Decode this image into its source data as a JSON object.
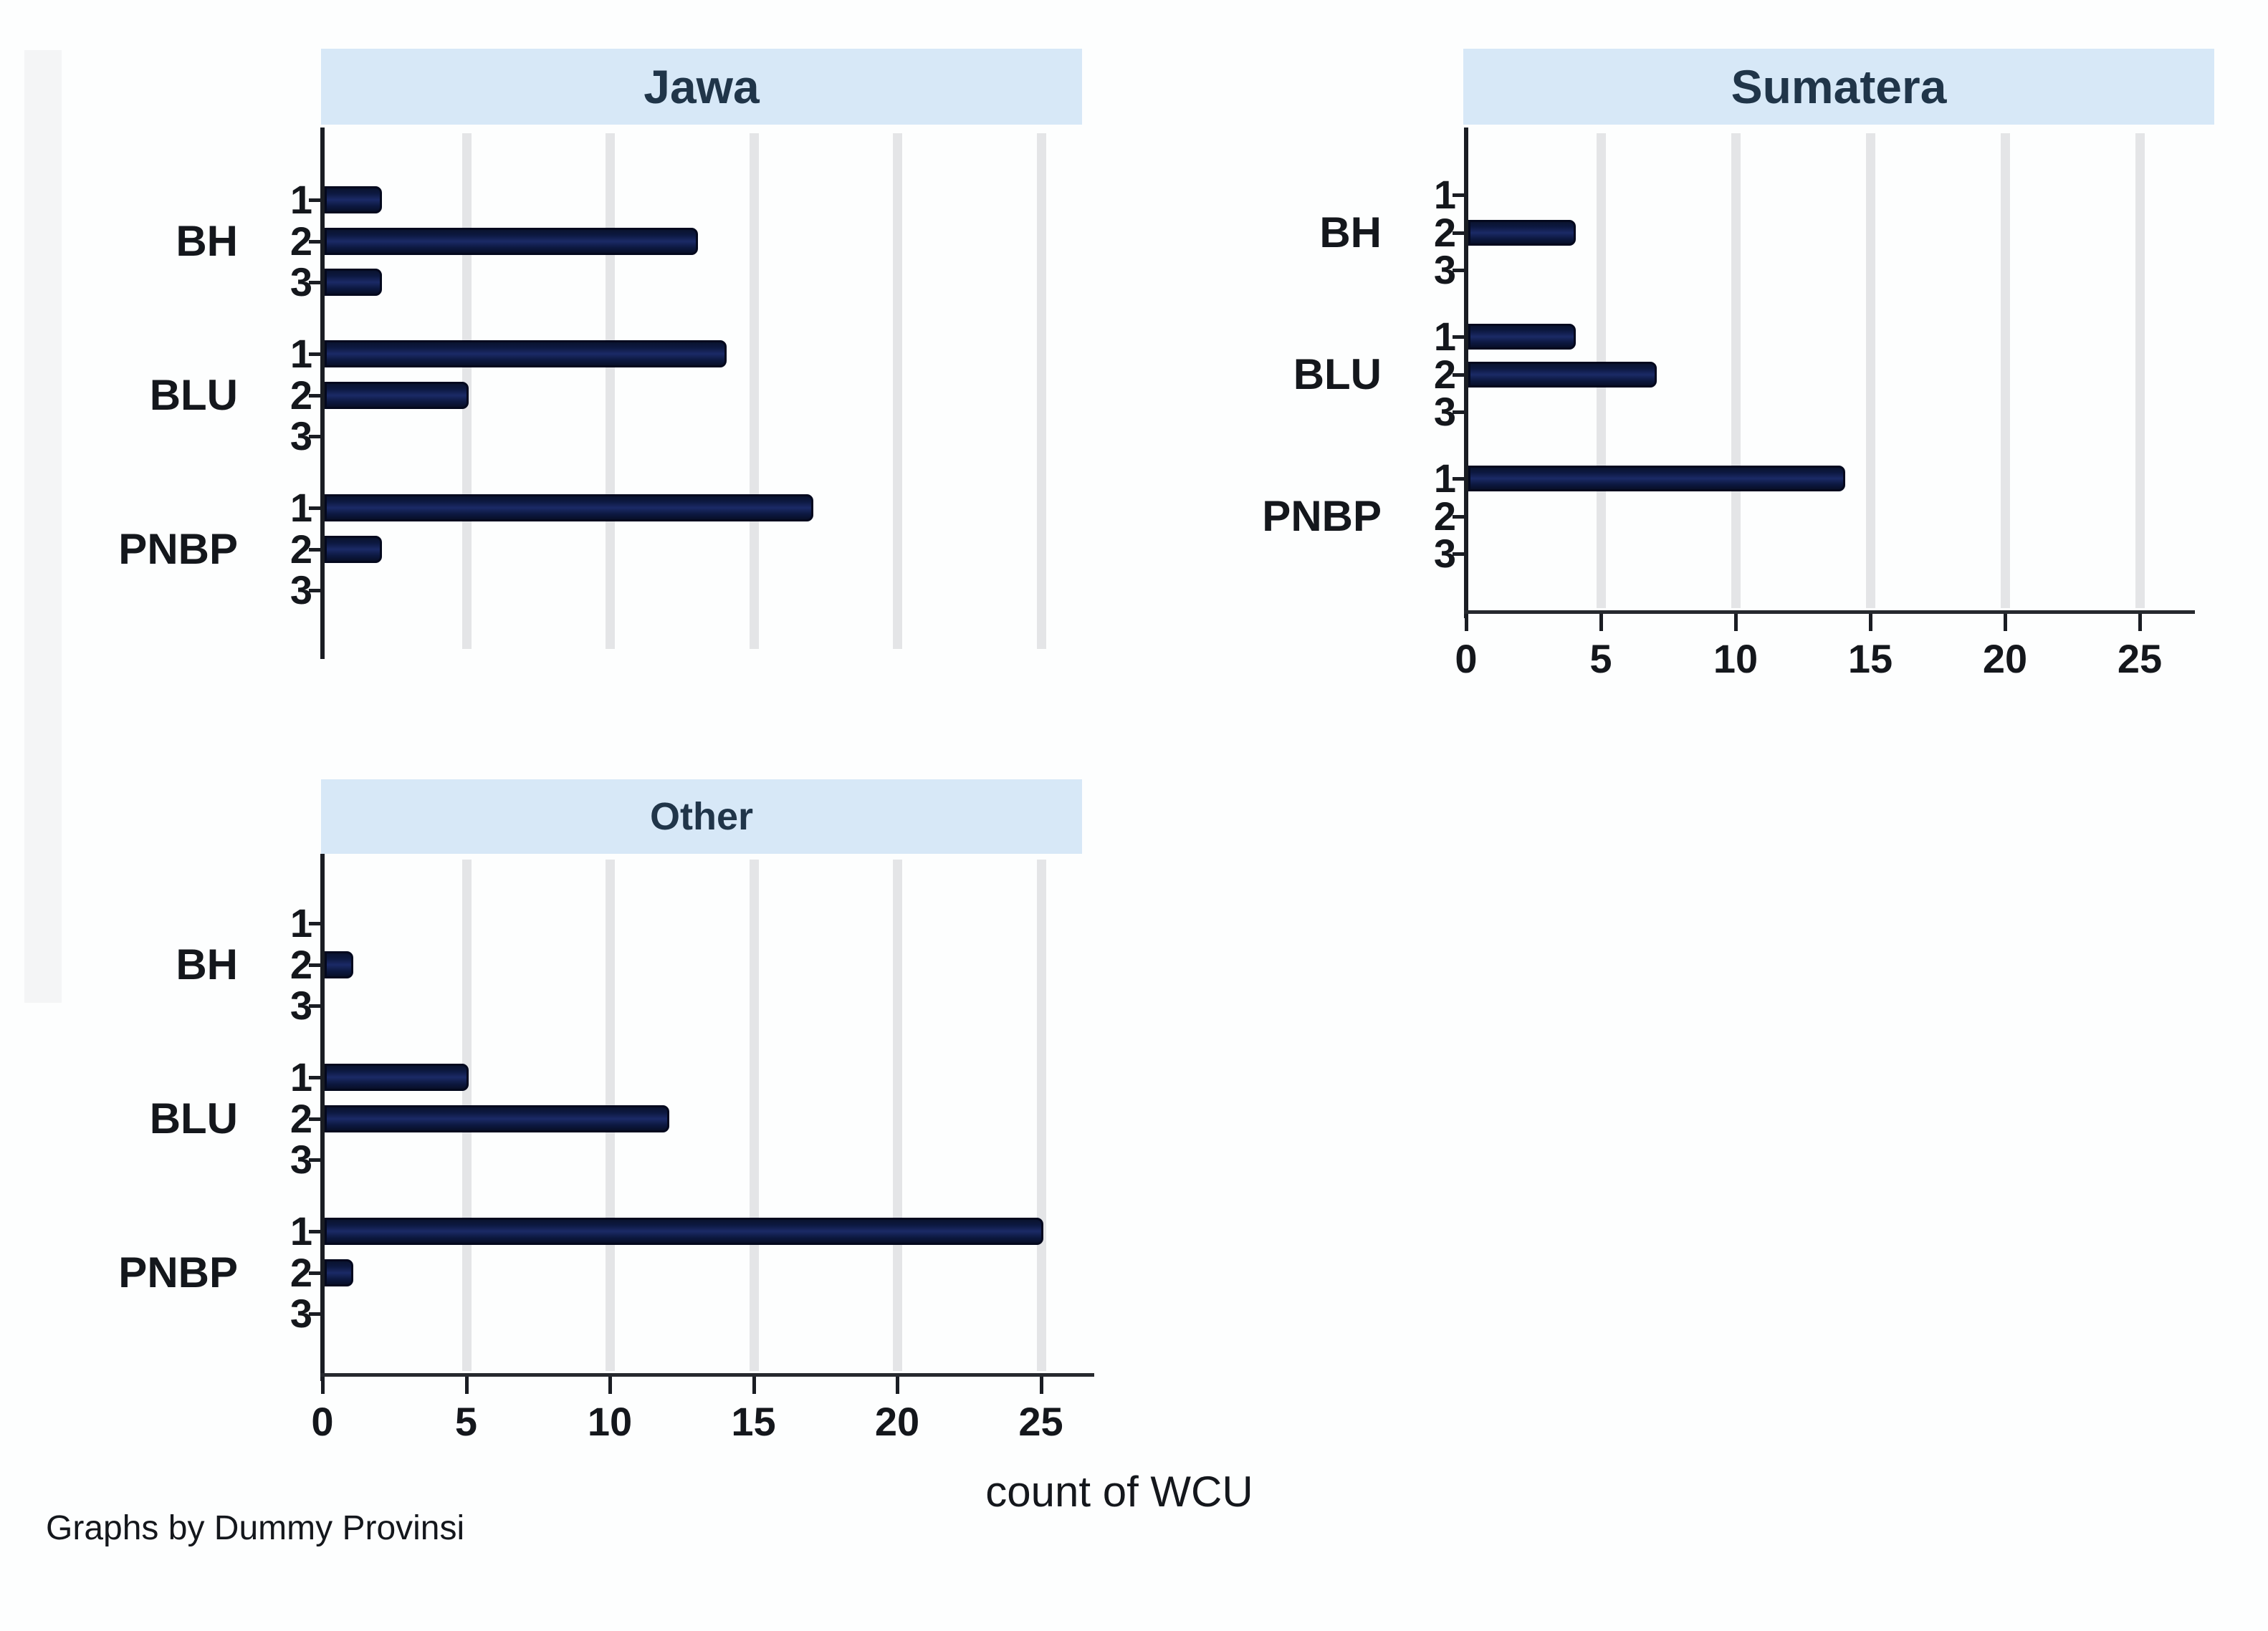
{
  "figure": {
    "xlabel": "count of WCU",
    "note": "Graphs by Dummy Provinsi",
    "x_tick_labels": [
      "0",
      "5",
      "10",
      "15",
      "20",
      "25"
    ],
    "colors": {
      "header_band": "#d7e8f7",
      "title_text": "#203549",
      "bar_fill": "#0c1840",
      "bar_outline": "#04091e",
      "gridline": "#e4e5e7",
      "axis": "#1a1d23",
      "text": "#14171c"
    }
  },
  "chart_data": [
    {
      "type": "bar",
      "orientation": "horizontal",
      "title": "Jawa",
      "categories": [
        "BH",
        "BLU",
        "PNBP"
      ],
      "subcategories": [
        "1",
        "2",
        "3"
      ],
      "values": [
        [
          2,
          13,
          2
        ],
        [
          14,
          5,
          0
        ],
        [
          17,
          2,
          0
        ]
      ],
      "x_ticks": [
        0,
        5,
        10,
        15,
        20,
        25
      ],
      "xlim": [
        0,
        26.5
      ],
      "grid": true,
      "x_axis_labels_visible": false,
      "xlabel": "count of WCU"
    },
    {
      "type": "bar",
      "orientation": "horizontal",
      "title": "Sumatera",
      "categories": [
        "BH",
        "BLU",
        "PNBP"
      ],
      "subcategories": [
        "1",
        "2",
        "3"
      ],
      "values": [
        [
          0,
          4,
          0
        ],
        [
          4,
          7,
          0
        ],
        [
          14,
          0,
          0
        ]
      ],
      "x_ticks": [
        0,
        5,
        10,
        15,
        20,
        25
      ],
      "xlim": [
        0,
        26.5
      ],
      "grid": true,
      "x_axis_labels_visible": true,
      "xlabel": "count of WCU"
    },
    {
      "type": "bar",
      "orientation": "horizontal",
      "title": "Other",
      "categories": [
        "BH",
        "BLU",
        "PNBP"
      ],
      "subcategories": [
        "1",
        "2",
        "3"
      ],
      "values": [
        [
          0,
          1,
          0
        ],
        [
          5,
          12,
          0
        ],
        [
          25,
          1,
          0
        ]
      ],
      "x_ticks": [
        0,
        5,
        10,
        15,
        20,
        25
      ],
      "xlim": [
        0,
        26.5
      ],
      "grid": true,
      "x_axis_labels_visible": true,
      "xlabel": "count of WCU"
    }
  ]
}
